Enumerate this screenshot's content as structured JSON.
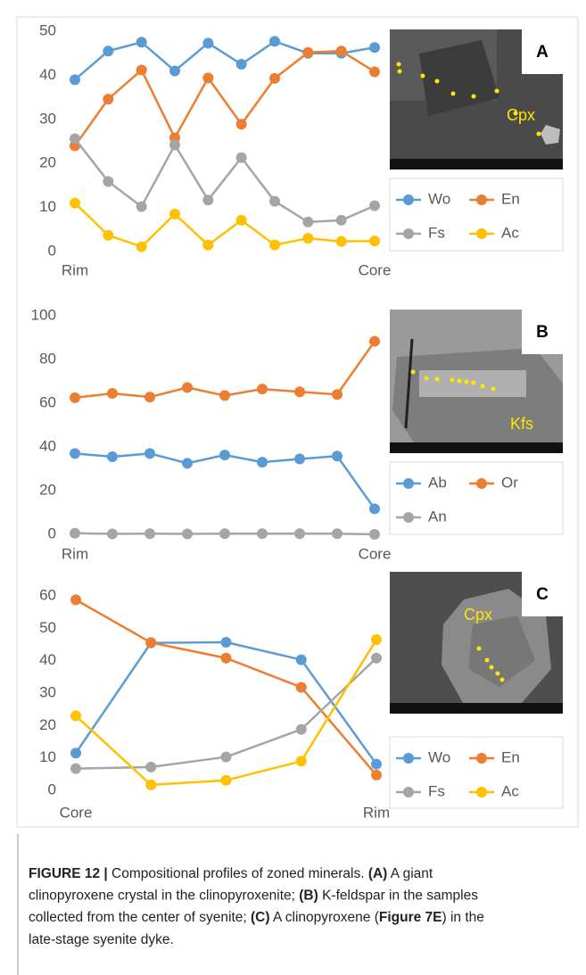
{
  "chart_data": [
    {
      "type": "line",
      "panel_label": "A",
      "image_label": "Cpx",
      "categories": [
        "Rim",
        null,
        null,
        null,
        null,
        null,
        null,
        null,
        null,
        "Core"
      ],
      "ylim": [
        0,
        50
      ],
      "yticks": [
        0,
        10,
        20,
        30,
        40,
        50
      ],
      "series": [
        {
          "name": "Wo",
          "color": "#5b9bd5",
          "values": [
            39,
            45.5,
            47.5,
            41,
            47.3,
            42.5,
            47.7,
            45,
            45,
            46.3
          ]
        },
        {
          "name": "En",
          "color": "#ed7d31",
          "values": [
            24,
            34.6,
            41.2,
            25.8,
            39.4,
            28.9,
            39.3,
            45.2,
            45.5,
            40.8
          ]
        },
        {
          "name": "Fs",
          "color": "#a5a5a5",
          "values": [
            25.6,
            15.9,
            10.2,
            24.2,
            11.7,
            21.3,
            11.4,
            6.7,
            7.1,
            10.4
          ]
        },
        {
          "name": "Ac",
          "color": "#ffc000",
          "values": [
            11,
            3.7,
            1.1,
            8.5,
            1.5,
            7.1,
            1.5,
            3,
            2.3,
            2.4
          ]
        }
      ]
    },
    {
      "type": "line",
      "panel_label": "B",
      "image_label": "Kfs",
      "categories": [
        "Rim",
        null,
        null,
        null,
        null,
        null,
        null,
        null,
        "Core"
      ],
      "ylim": [
        0,
        100
      ],
      "yticks": [
        0,
        20,
        40,
        60,
        80,
        100
      ],
      "series": [
        {
          "name": "Ab",
          "color": "#5b9bd5",
          "values": [
            37,
            35.5,
            37,
            32.5,
            36.3,
            33,
            34.5,
            35.8,
            11.7
          ]
        },
        {
          "name": "Or",
          "color": "#ed7d31",
          "values": [
            62.5,
            64.5,
            62.8,
            67.2,
            63.5,
            66.5,
            65.2,
            64,
            88.3
          ]
        },
        {
          "name": "An",
          "color": "#a5a5a5",
          "values": [
            0.5,
            0.2,
            0.3,
            0.2,
            0.3,
            0.3,
            0.3,
            0.3,
            0
          ]
        }
      ]
    },
    {
      "type": "line",
      "panel_label": "C",
      "image_label": "Cpx",
      "categories": [
        "Core",
        null,
        null,
        null,
        "Rim"
      ],
      "ylim": [
        0,
        60
      ],
      "yticks": [
        0,
        10,
        20,
        30,
        40,
        50,
        60
      ],
      "series": [
        {
          "name": "Wo",
          "color": "#5b9bd5",
          "values": [
            11.5,
            45.5,
            45.7,
            40.3,
            8.1
          ]
        },
        {
          "name": "En",
          "color": "#ed7d31",
          "values": [
            58.8,
            45.6,
            40.8,
            31.8,
            4.7
          ]
        },
        {
          "name": "Fs",
          "color": "#a5a5a5",
          "values": [
            6.7,
            7.2,
            10.3,
            18.8,
            40.8
          ]
        },
        {
          "name": "Ac",
          "color": "#ffc000",
          "values": [
            23,
            1.7,
            3.1,
            9,
            46.5
          ]
        }
      ]
    }
  ],
  "caption": {
    "lines": [
      [
        {
          "text": "FIGURE 12 |",
          "bold": true
        },
        {
          "text": " Compositional profiles of zoned minerals. ",
          "bold": false
        },
        {
          "text": "(A)",
          "bold": true
        },
        {
          "text": " A giant",
          "bold": false
        }
      ],
      [
        {
          "text": "clinopyroxene crystal in the clinopyroxenite; ",
          "bold": false
        },
        {
          "text": "(B)",
          "bold": true
        },
        {
          "text": " K-feldspar in the samples",
          "bold": false
        }
      ],
      [
        {
          "text": "collected from the center of syenite; ",
          "bold": false
        },
        {
          "text": "(C)",
          "bold": true
        },
        {
          "text": " A clinopyroxene (",
          "bold": false
        },
        {
          "text": "Figure 7E",
          "bold": true
        },
        {
          "text": ") in the",
          "bold": false
        }
      ],
      [
        {
          "text": "late-stage syenite dyke.",
          "bold": false
        }
      ]
    ]
  }
}
